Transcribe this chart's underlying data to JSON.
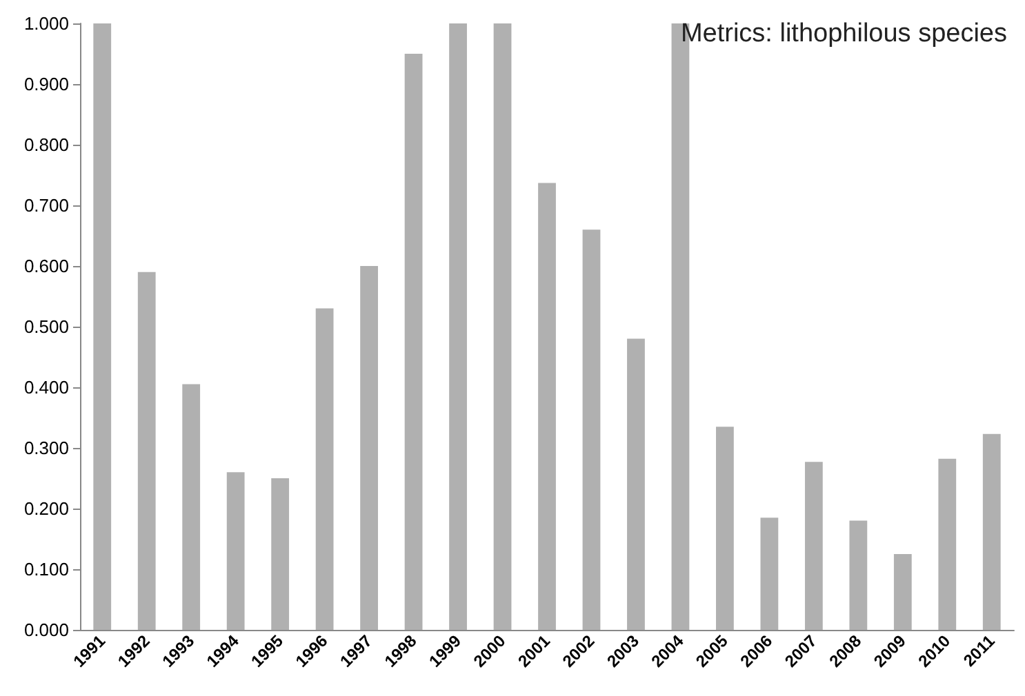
{
  "chart_data": {
    "type": "bar",
    "title": "Metrics: lithophilous species",
    "categories": [
      "1991",
      "1992",
      "1993",
      "1994",
      "1995",
      "1996",
      "1997",
      "1998",
      "1999",
      "2000",
      "2001",
      "2002",
      "2003",
      "2004",
      "2005",
      "2006",
      "2007",
      "2008",
      "2009",
      "2010",
      "2011"
    ],
    "values": [
      1.0,
      0.59,
      0.405,
      0.26,
      0.25,
      0.53,
      0.6,
      0.95,
      1.0,
      1.0,
      0.737,
      0.66,
      0.48,
      1.0,
      0.335,
      0.185,
      0.277,
      0.18,
      0.125,
      0.282,
      0.323
    ],
    "color": "#b0b0b0",
    "ylim": [
      0,
      1
    ],
    "yticks": [
      {
        "value": 0,
        "label": "0.000"
      },
      {
        "value": 0.1,
        "label": "0.100"
      },
      {
        "value": 0.2,
        "label": "0.200"
      },
      {
        "value": 0.3,
        "label": "0.300"
      },
      {
        "value": 0.4,
        "label": "0.400"
      },
      {
        "value": 0.5,
        "label": "0.500"
      },
      {
        "value": 0.6,
        "label": "0.600"
      },
      {
        "value": 0.7,
        "label": "0.700"
      },
      {
        "value": 0.8,
        "label": "0.800"
      },
      {
        "value": 0.9,
        "label": "0.900"
      },
      {
        "value": 1,
        "label": "1.000"
      }
    ],
    "grid": false
  }
}
